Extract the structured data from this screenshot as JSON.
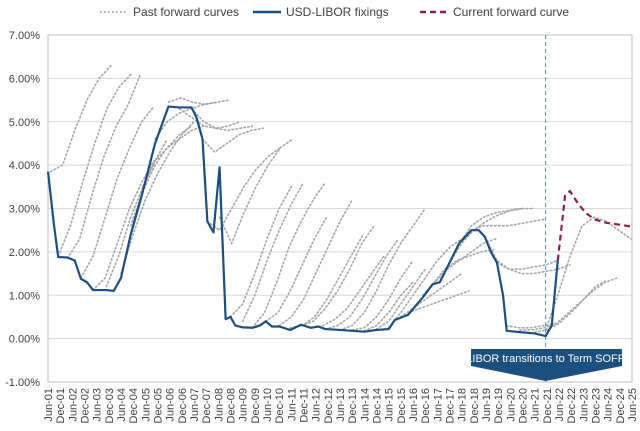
{
  "chart_data": {
    "type": "line",
    "title": "",
    "xlabel": "",
    "ylabel": "",
    "ylim": [
      -1,
      7
    ],
    "xlim": [
      2001.5,
      2025.5
    ],
    "grid": "horizontal",
    "legend_position": "top",
    "y_ticks": [
      "7.00%",
      "6.00%",
      "5.00%",
      "4.00%",
      "3.00%",
      "2.00%",
      "1.00%",
      "0.00%",
      "-1.00%"
    ],
    "y_tick_values": [
      7,
      6,
      5,
      4,
      3,
      2,
      1,
      0,
      -1
    ],
    "x_ticks": [
      "Jun-01",
      "Dec-01",
      "Jun-02",
      "Dec-02",
      "Jun-03",
      "Dec-03",
      "Jun-04",
      "Dec-04",
      "Jun-05",
      "Dec-05",
      "Jun-06",
      "Dec-06",
      "Jun-07",
      "Dec-07",
      "Jun-08",
      "Dec-08",
      "Jun-09",
      "Dec-09",
      "Jun-10",
      "Dec-10",
      "Jun-11",
      "Dec-11",
      "Jun-12",
      "Dec-12",
      "Jun-13",
      "Dec-13",
      "Jun-14",
      "Dec-14",
      "Jun-15",
      "Dec-15",
      "Jun-16",
      "Dec-16",
      "Jun-17",
      "Dec-17",
      "Jun-18",
      "Dec-18",
      "Jun-19",
      "Dec-19",
      "Jun-20",
      "Dec-20",
      "Jun-21",
      "Dec-21",
      "Jun-22",
      "Dec-22",
      "Jun-23",
      "Dec-23",
      "Jun-24",
      "Dec-24",
      "Jun-25"
    ],
    "legend": [
      "Past forward curves",
      "USD-LIBOR fixings",
      "Current forward curve"
    ],
    "colors": {
      "past": "#a6a6a6",
      "libor": "#1b4f7e",
      "current": "#8b1f52",
      "annotation": "#1b4f7e",
      "grid": "#d9d9d9"
    },
    "annotation": {
      "text": "LIBOR transitions to Term SOFR",
      "x": 2021.95
    },
    "series": [
      {
        "name": "USD-LIBOR fixings",
        "points": [
          [
            2001.5,
            3.85
          ],
          [
            2001.75,
            2.6
          ],
          [
            2001.92,
            1.88
          ],
          [
            2002.3,
            1.87
          ],
          [
            2002.6,
            1.8
          ],
          [
            2002.85,
            1.38
          ],
          [
            2003.1,
            1.3
          ],
          [
            2003.35,
            1.12
          ],
          [
            2003.9,
            1.12
          ],
          [
            2004.2,
            1.1
          ],
          [
            2004.5,
            1.4
          ],
          [
            2004.9,
            2.4
          ],
          [
            2005.4,
            3.4
          ],
          [
            2005.9,
            4.5
          ],
          [
            2006.45,
            5.35
          ],
          [
            2006.9,
            5.33
          ],
          [
            2007.4,
            5.33
          ],
          [
            2007.6,
            5.1
          ],
          [
            2007.85,
            4.6
          ],
          [
            2008.05,
            2.7
          ],
          [
            2008.3,
            2.45
          ],
          [
            2008.55,
            3.95
          ],
          [
            2008.8,
            0.45
          ],
          [
            2009.0,
            0.5
          ],
          [
            2009.2,
            0.3
          ],
          [
            2009.5,
            0.26
          ],
          [
            2009.9,
            0.25
          ],
          [
            2010.2,
            0.3
          ],
          [
            2010.45,
            0.4
          ],
          [
            2010.7,
            0.28
          ],
          [
            2011.0,
            0.28
          ],
          [
            2011.45,
            0.2
          ],
          [
            2011.9,
            0.32
          ],
          [
            2012.3,
            0.25
          ],
          [
            2012.6,
            0.28
          ],
          [
            2012.9,
            0.22
          ],
          [
            2013.5,
            0.2
          ],
          [
            2014.0,
            0.18
          ],
          [
            2014.5,
            0.16
          ],
          [
            2015.0,
            0.2
          ],
          [
            2015.5,
            0.22
          ],
          [
            2015.75,
            0.43
          ],
          [
            2016.3,
            0.55
          ],
          [
            2016.9,
            0.95
          ],
          [
            2017.3,
            1.25
          ],
          [
            2017.6,
            1.3
          ],
          [
            2018.0,
            1.75
          ],
          [
            2018.4,
            2.2
          ],
          [
            2018.9,
            2.5
          ],
          [
            2019.2,
            2.5
          ],
          [
            2019.45,
            2.35
          ],
          [
            2019.7,
            2.0
          ],
          [
            2019.95,
            1.75
          ],
          [
            2020.2,
            1.0
          ],
          [
            2020.35,
            0.18
          ],
          [
            2020.9,
            0.15
          ],
          [
            2021.5,
            0.12
          ],
          [
            2021.95,
            0.06
          ],
          [
            2022.2,
            0.3
          ],
          [
            2022.45,
            1.8
          ]
        ]
      },
      {
        "name": "Current forward curve",
        "points": [
          [
            2022.45,
            1.8
          ],
          [
            2022.75,
            3.3
          ],
          [
            2022.95,
            3.4
          ],
          [
            2023.3,
            3.1
          ],
          [
            2023.6,
            2.9
          ],
          [
            2023.95,
            2.75
          ],
          [
            2024.45,
            2.67
          ],
          [
            2024.95,
            2.63
          ],
          [
            2025.5,
            2.58
          ]
        ]
      }
    ],
    "past_forward_curves": [
      {
        "start": 2001.92,
        "values": [
          1.9,
          2.6,
          3.6,
          4.5,
          5.3,
          5.8,
          6.1
        ]
      },
      {
        "start": 2001.6,
        "values": [
          3.85,
          4.0,
          4.8,
          5.5,
          6.0,
          6.3
        ]
      },
      {
        "start": 2002.3,
        "values": [
          1.85,
          2.3,
          3.3,
          4.2,
          4.9,
          5.4,
          6.1
        ]
      },
      {
        "start": 2002.85,
        "values": [
          1.4,
          1.9,
          2.8,
          3.7,
          4.4,
          5.0,
          5.35
        ]
      },
      {
        "start": 2003.35,
        "values": [
          1.12,
          1.4,
          2.2,
          3.0,
          3.6,
          4.1
        ]
      },
      {
        "start": 2003.9,
        "values": [
          1.2,
          1.9,
          2.8,
          3.5,
          4.1,
          4.6
        ]
      },
      {
        "start": 2004.5,
        "values": [
          1.5,
          2.4,
          3.2,
          3.8,
          4.3,
          4.7,
          5.0
        ]
      },
      {
        "start": 2004.9,
        "values": [
          2.6,
          3.4,
          4.0,
          4.4,
          4.7,
          4.9
        ]
      },
      {
        "start": 2005.4,
        "values": [
          3.5,
          4.1,
          4.4,
          4.6,
          4.8,
          4.9
        ]
      },
      {
        "start": 2005.9,
        "values": [
          4.6,
          5.0,
          5.2,
          5.3,
          5.4,
          5.45
        ]
      },
      {
        "start": 2006.45,
        "values": [
          5.45,
          5.55,
          5.45,
          5.4,
          5.45,
          5.5
        ]
      },
      {
        "start": 2006.9,
        "values": [
          5.3,
          5.1,
          4.9,
          4.85,
          4.9,
          5.0
        ]
      },
      {
        "start": 2007.4,
        "values": [
          5.3,
          5.0,
          4.85,
          4.8,
          4.85,
          4.9
        ]
      },
      {
        "start": 2007.85,
        "values": [
          4.6,
          4.3,
          4.5,
          4.7,
          4.8,
          4.85
        ]
      },
      {
        "start": 2008.05,
        "values": [
          2.7,
          2.5,
          3.0,
          3.5,
          3.9,
          4.2,
          4.4
        ]
      },
      {
        "start": 2008.55,
        "values": [
          2.8,
          2.2,
          2.9,
          3.5,
          4.0,
          4.4,
          4.6
        ]
      },
      {
        "start": 2009.0,
        "values": [
          0.5,
          0.8,
          1.5,
          2.3,
          3.0,
          3.5
        ]
      },
      {
        "start": 2009.5,
        "values": [
          0.4,
          1.0,
          1.8,
          2.5,
          3.1,
          3.6
        ]
      },
      {
        "start": 2009.9,
        "values": [
          0.25,
          0.6,
          1.3,
          2.1,
          2.7,
          3.2,
          3.6
        ]
      },
      {
        "start": 2010.45,
        "values": [
          0.4,
          0.6,
          1.1,
          1.7,
          2.3,
          2.8
        ]
      },
      {
        "start": 2011.0,
        "values": [
          0.3,
          0.5,
          0.9,
          1.5,
          2.1,
          2.7,
          3.2
        ]
      },
      {
        "start": 2011.45,
        "values": [
          0.25,
          0.3,
          0.5,
          0.9,
          1.4,
          1.9,
          2.4
        ]
      },
      {
        "start": 2011.9,
        "values": [
          0.3,
          0.4,
          0.7,
          1.1,
          1.6,
          2.2,
          2.6
        ]
      },
      {
        "start": 2012.3,
        "values": [
          0.25,
          0.3,
          0.45,
          0.7,
          1.1,
          1.5,
          1.9
        ]
      },
      {
        "start": 2012.9,
        "values": [
          0.22,
          0.3,
          0.5,
          0.9,
          1.4,
          1.9,
          2.3
        ]
      },
      {
        "start": 2013.5,
        "values": [
          0.2,
          0.3,
          0.6,
          1.1,
          1.7,
          2.2,
          2.6,
          3.0
        ]
      },
      {
        "start": 2014.0,
        "values": [
          0.2,
          0.25,
          0.5,
          0.9,
          1.4,
          1.8
        ]
      },
      {
        "start": 2014.5,
        "values": [
          0.18,
          0.3,
          0.6,
          1.0,
          1.3
        ]
      },
      {
        "start": 2015.0,
        "values": [
          0.22,
          0.4,
          0.8,
          1.2,
          1.6
        ]
      },
      {
        "start": 2015.5,
        "values": [
          0.25,
          0.6,
          1.0,
          1.4,
          1.8,
          2.1,
          2.3
        ]
      },
      {
        "start": 2016.0,
        "values": [
          0.5,
          0.7,
          0.9,
          1.1,
          1.3,
          1.5
        ]
      },
      {
        "start": 2016.3,
        "values": [
          0.6,
          0.7,
          0.8,
          0.9,
          1.0,
          1.1
        ]
      },
      {
        "start": 2016.9,
        "values": [
          1.0,
          1.3,
          1.6,
          1.8,
          2.0,
          2.2,
          2.3
        ]
      },
      {
        "start": 2017.3,
        "values": [
          1.25,
          1.6,
          1.8,
          1.9,
          2.0,
          2.05
        ]
      },
      {
        "start": 2018.0,
        "values": [
          1.75,
          2.2,
          2.5,
          2.7,
          2.85,
          2.95,
          3.0
        ]
      },
      {
        "start": 2018.4,
        "values": [
          2.2,
          2.6,
          2.8,
          2.9,
          2.95,
          3.0,
          3.0
        ]
      },
      {
        "start": 2018.9,
        "values": [
          2.5,
          2.6,
          2.6,
          2.6,
          2.65,
          2.7,
          2.75
        ]
      },
      {
        "start": 2019.45,
        "values": [
          2.35,
          1.8,
          1.6,
          1.6,
          1.65,
          1.7,
          1.8
        ]
      },
      {
        "start": 2019.95,
        "values": [
          1.75,
          1.6,
          1.5,
          1.5,
          1.55,
          1.6,
          1.7
        ]
      },
      {
        "start": 2020.35,
        "values": [
          0.3,
          0.25,
          0.25,
          0.3,
          0.35
        ]
      },
      {
        "start": 2020.9,
        "values": [
          0.2,
          0.2,
          0.25,
          0.35,
          0.6,
          0.85,
          1.1,
          1.3,
          1.4
        ]
      },
      {
        "start": 2021.5,
        "values": [
          0.15,
          0.2,
          0.35,
          0.6,
          0.9,
          1.2,
          1.35
        ]
      },
      {
        "start": 2021.95,
        "values": [
          0.2,
          1.0,
          1.9,
          2.6,
          2.8,
          2.7,
          2.5,
          2.3
        ]
      }
    ]
  }
}
